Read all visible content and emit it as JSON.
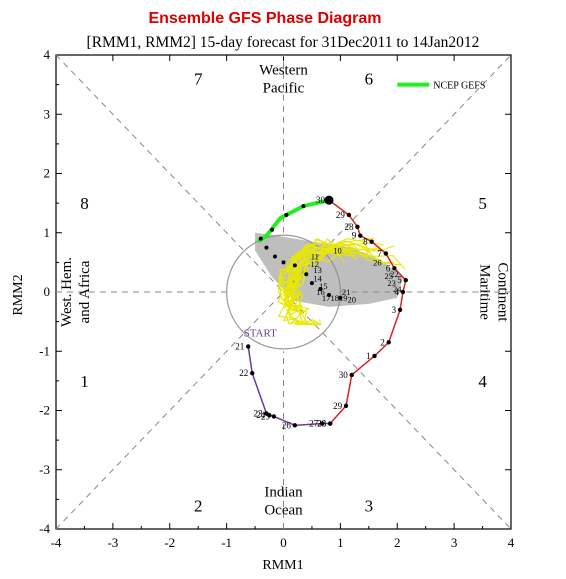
{
  "chart_data": {
    "type": "line",
    "title": "Ensemble GFS Phase Diagram",
    "subtitle": "[RMM1, RMM2] 15-day forecast for 31Dec2011 to 14Jan2012",
    "xlabel": "RMM1",
    "ylabel": "RMM2",
    "xlim": [
      -4,
      4
    ],
    "ylim": [
      -4,
      4
    ],
    "xticks": [
      -4,
      -3,
      -2,
      -1,
      0,
      1,
      2,
      3,
      4
    ],
    "yticks": [
      -4,
      -3,
      -2,
      -1,
      0,
      1,
      2,
      3,
      4
    ],
    "grid": false,
    "legend": {
      "position": "top-right",
      "label": "NCEP GEFS",
      "color": "#22ee22"
    },
    "phase_labels": [
      {
        "text": "1",
        "x": -3.5,
        "y": -1.5
      },
      {
        "text": "2",
        "x": -1.5,
        "y": -3.6
      },
      {
        "text": "3",
        "x": 1.5,
        "y": -3.6
      },
      {
        "text": "4",
        "x": 3.5,
        "y": -1.5
      },
      {
        "text": "5",
        "x": 3.5,
        "y": 1.5
      },
      {
        "text": "6",
        "x": 1.5,
        "y": 3.6
      },
      {
        "text": "7",
        "x": -1.5,
        "y": 3.6
      },
      {
        "text": "8",
        "x": -3.5,
        "y": 1.5
      }
    ],
    "region_labels": {
      "top": [
        "Western",
        "Pacific"
      ],
      "bottom": [
        "Indian",
        "Ocean"
      ],
      "left": [
        "West. Hem.",
        "and Africa"
      ],
      "right": [
        "Maritime",
        "Continent"
      ]
    },
    "start_label": "START",
    "colors": {
      "purple": "#6a3d9a",
      "red": "#dd2222",
      "spread": "#888888",
      "members": "#e8e800",
      "mean": "#22ee22",
      "dot": "#000000",
      "axis": "#000000",
      "dash": "#888888"
    },
    "series": [
      {
        "color": "#6a3d9a",
        "points": [
          {
            "x": -0.62,
            "y": -0.92,
            "label": "21"
          },
          {
            "x": -0.55,
            "y": -1.37,
            "label": "22"
          },
          {
            "x": -0.3,
            "y": -2.05,
            "label": "23"
          },
          {
            "x": -0.25,
            "y": -2.08,
            "label": "24"
          },
          {
            "x": -0.17,
            "y": -2.1,
            "label": "25"
          },
          {
            "x": 0.2,
            "y": -2.25,
            "label": "26"
          },
          {
            "x": 0.68,
            "y": -2.22,
            "label": "27"
          },
          {
            "x": 0.82,
            "y": -2.22,
            "label": "28"
          }
        ]
      },
      {
        "color": "#dd2222",
        "points": [
          {
            "x": 0.82,
            "y": -2.22,
            "label": "28"
          },
          {
            "x": 1.1,
            "y": -1.92,
            "label": "29"
          },
          {
            "x": 1.2,
            "y": -1.4,
            "label": "30"
          },
          {
            "x": 1.6,
            "y": -1.08,
            "label": "1"
          },
          {
            "x": 1.85,
            "y": -0.85,
            "label": "2"
          },
          {
            "x": 2.05,
            "y": -0.3,
            "label": "3"
          },
          {
            "x": 2.1,
            "y": 0.0,
            "label": "4"
          },
          {
            "x": 2.15,
            "y": 0.2,
            "label": "5"
          },
          {
            "x": 1.95,
            "y": 0.4,
            "label": "6"
          },
          {
            "x": 1.8,
            "y": 0.65,
            "label": "7"
          },
          {
            "x": 1.55,
            "y": 0.85,
            "label": "8"
          },
          {
            "x": 1.35,
            "y": 0.95,
            "label": "9"
          },
          {
            "x": 1.3,
            "y": 1.1,
            "label": "28"
          },
          {
            "x": 1.15,
            "y": 1.3,
            "label": "29"
          },
          {
            "x": 0.8,
            "y": 1.55,
            "label": "30"
          }
        ]
      }
    ],
    "inner_labels": [
      {
        "x": 1.65,
        "y": 0.45,
        "text": "26"
      },
      {
        "x": 1.85,
        "y": 0.22,
        "text": "25"
      },
      {
        "x": 1.9,
        "y": 0.1,
        "text": "23"
      },
      {
        "x": 2.0,
        "y": 0.0,
        "text": "24"
      },
      {
        "x": 1.95,
        "y": 0.25,
        "text": "22"
      },
      {
        "x": 0.95,
        "y": 0.65,
        "text": "10"
      },
      {
        "x": 0.55,
        "y": 0.55,
        "text": "11"
      },
      {
        "x": 0.55,
        "y": 0.42,
        "text": "12"
      },
      {
        "x": 0.6,
        "y": 0.32,
        "text": "13"
      },
      {
        "x": 0.6,
        "y": 0.18,
        "text": "14"
      },
      {
        "x": 0.7,
        "y": 0.05,
        "text": "15"
      },
      {
        "x": 0.65,
        "y": -0.05,
        "text": "16"
      },
      {
        "x": 0.75,
        "y": -0.15,
        "text": "17"
      },
      {
        "x": 0.9,
        "y": -0.15,
        "text": "18"
      },
      {
        "x": 1.05,
        "y": -0.15,
        "text": "19"
      },
      {
        "x": 1.2,
        "y": -0.18,
        "text": "20"
      },
      {
        "x": 1.1,
        "y": -0.05,
        "text": "21"
      }
    ],
    "ensemble_mean": [
      {
        "x": 0.8,
        "y": 1.55
      },
      {
        "x": 0.35,
        "y": 1.45
      },
      {
        "x": -0.05,
        "y": 1.25
      },
      {
        "x": -0.3,
        "y": 0.95
      },
      {
        "x": -0.45,
        "y": 0.85
      }
    ],
    "mean_dots": [
      {
        "x": 0.8,
        "y": 1.55
      },
      {
        "x": 0.35,
        "y": 1.45
      },
      {
        "x": 0.05,
        "y": 1.3
      },
      {
        "x": -0.2,
        "y": 1.05
      },
      {
        "x": -0.4,
        "y": 0.9
      },
      {
        "x": -0.3,
        "y": 0.75
      },
      {
        "x": -0.15,
        "y": 0.6
      },
      {
        "x": 0.0,
        "y": 0.5
      },
      {
        "x": 0.2,
        "y": 0.45
      },
      {
        "x": 0.4,
        "y": 0.3
      },
      {
        "x": 0.5,
        "y": 0.15
      },
      {
        "x": 0.65,
        "y": 0.05
      },
      {
        "x": 0.8,
        "y": -0.05
      },
      {
        "x": 1.0,
        "y": -0.1
      }
    ]
  }
}
